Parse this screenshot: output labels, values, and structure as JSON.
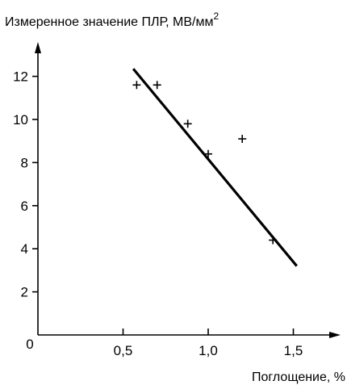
{
  "chart_data": {
    "type": "scatter",
    "ylabel": "Измеренное значение ПЛР, МВ/мм",
    "ylabel_superscript": "2",
    "xlabel": "Поглощение, %",
    "origin_label": "0",
    "xlim": [
      0,
      1.8
    ],
    "ylim": [
      0,
      13.5
    ],
    "x_ticks": [
      {
        "value": 0.5,
        "label": "0,5"
      },
      {
        "value": 1.0,
        "label": "1,0"
      },
      {
        "value": 1.5,
        "label": "1,5"
      }
    ],
    "y_ticks": [
      {
        "value": 2,
        "label": "2"
      },
      {
        "value": 4,
        "label": "4"
      },
      {
        "value": 6,
        "label": "6"
      },
      {
        "value": 8,
        "label": "8"
      },
      {
        "value": 10,
        "label": "10"
      },
      {
        "value": 12,
        "label": "12"
      }
    ],
    "points": [
      {
        "x": 0.58,
        "y": 11.6
      },
      {
        "x": 0.7,
        "y": 11.6
      },
      {
        "x": 0.88,
        "y": 9.8
      },
      {
        "x": 1.0,
        "y": 8.4
      },
      {
        "x": 1.2,
        "y": 9.1
      },
      {
        "x": 1.38,
        "y": 4.4
      }
    ],
    "trend_line": [
      {
        "x": 0.56,
        "y": 12.35
      },
      {
        "x": 1.52,
        "y": 3.2
      }
    ],
    "marker": "plus",
    "grid": false,
    "legend": "none"
  }
}
